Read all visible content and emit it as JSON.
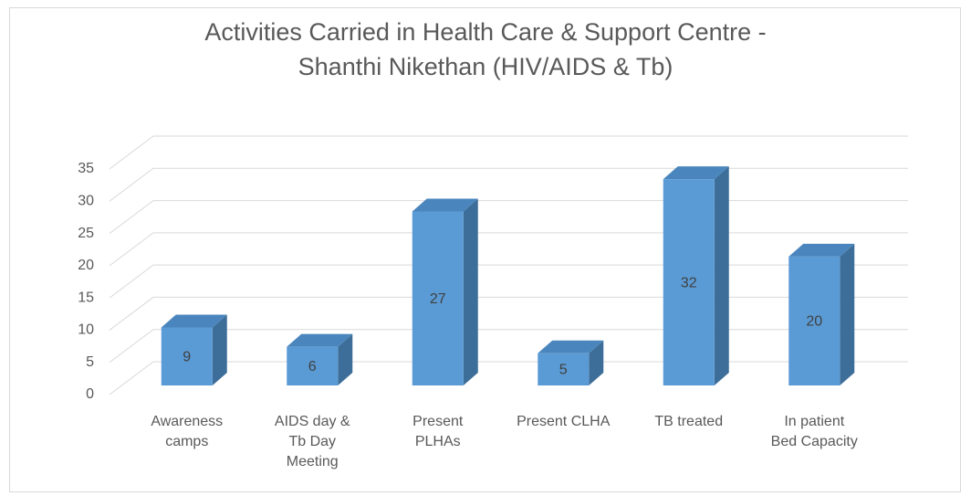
{
  "chart_data": {
    "type": "bar3d",
    "title": "Activities Carried in Health Care & Support  Centre -\nShanthi Nikethan (HIV/AIDS & Tb)",
    "categories": [
      "Awareness\ncamps",
      "AIDS day &\nTb Day\nMeeting",
      "Present\nPLHAs",
      "Present CLHA",
      "TB treated",
      "In patient\nBed Capacity"
    ],
    "values": [
      9,
      6,
      27,
      5,
      32,
      20
    ],
    "color": "#5b9bd5",
    "ylim": [
      0,
      35
    ],
    "yticks": [
      0,
      5,
      10,
      15,
      20,
      25,
      30,
      35
    ],
    "grid": true
  }
}
